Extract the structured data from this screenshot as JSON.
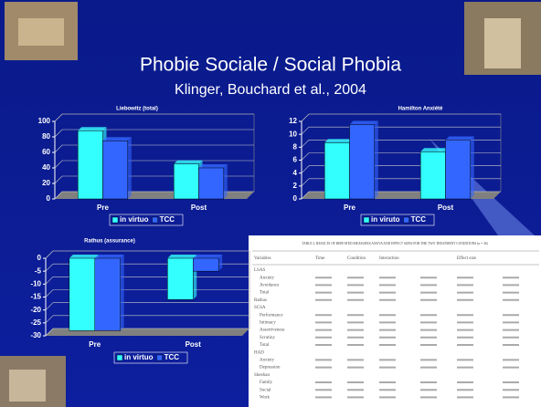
{
  "slide": {
    "title": "Phobie Sociale / Social Phobia",
    "subtitle": "Klinger, Bouchard et al., 2004"
  },
  "chart_data": [
    {
      "type": "bar",
      "title": "Liebowitz (total)",
      "categories": [
        "Pre",
        "Post"
      ],
      "series": [
        {
          "name": "in virtuo",
          "color": "#33ffff",
          "values": [
            88,
            45
          ]
        },
        {
          "name": "TCC",
          "color": "#3366ff",
          "values": [
            75,
            40
          ]
        }
      ],
      "ylim": [
        0,
        100
      ],
      "yticks": [
        0,
        20,
        40,
        60,
        80,
        100
      ],
      "grid": true
    },
    {
      "type": "bar",
      "title": "Hamilton Anxiété",
      "categories": [
        "Pre",
        "Post"
      ],
      "series": [
        {
          "name": "in viruto",
          "color": "#33ffff",
          "values": [
            8.7,
            7.3
          ]
        },
        {
          "name": "TCC",
          "color": "#3366ff",
          "values": [
            11.5,
            9.1
          ]
        }
      ],
      "ylim": [
        0,
        12
      ],
      "yticks": [
        0,
        2,
        4,
        6,
        8,
        10,
        12
      ],
      "grid": true
    },
    {
      "type": "bar",
      "title": "Rathus (assurance)",
      "categories": [
        "Pre",
        "Post"
      ],
      "series": [
        {
          "name": "in virtuo",
          "color": "#33ffff",
          "values": [
            -28,
            -16
          ]
        },
        {
          "name": "TCC",
          "color": "#3366ff",
          "values": [
            -28,
            -5
          ]
        }
      ],
      "ylim": [
        -30,
        0
      ],
      "yticks": [
        0,
        -5,
        -10,
        -15,
        -20,
        -25,
        -30
      ],
      "grid": true
    }
  ],
  "table": {
    "caption": "TABLE 2. RESULTS OF REPEATED MEASURES ANOVA AND EFFECT SIZES FOR THE TWO TREATMENT CONDITIONS (n = 36)",
    "header": [
      "Variables",
      "Time",
      "Condition",
      "Interaction",
      "Effect size"
    ],
    "rows": [
      "LSAS",
      "Anxiety",
      "Avoidance",
      "Total",
      "Rathus",
      "SCSA",
      "Performance",
      "Intimacy",
      "Assertiveness",
      "Scrutiny",
      "Total",
      "HAD",
      "Anxiety",
      "Depression",
      "Sheehan",
      "Family",
      "Social",
      "Work"
    ]
  }
}
